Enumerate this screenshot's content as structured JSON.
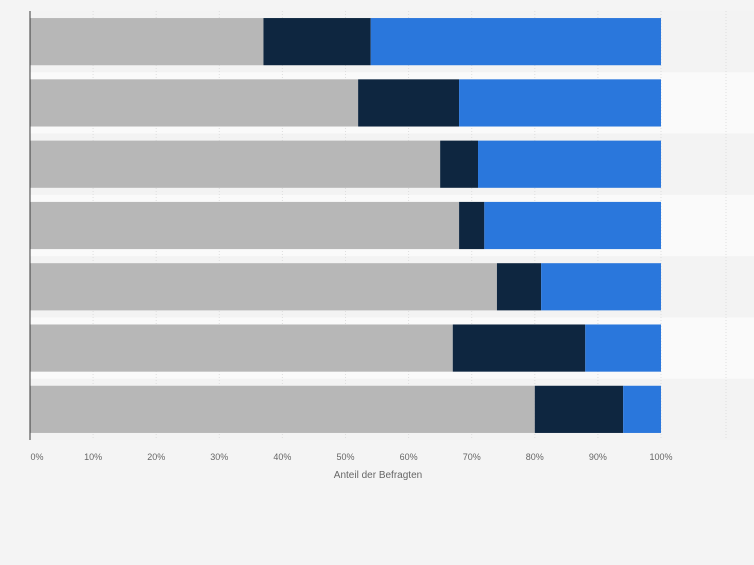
{
  "chart_data": {
    "type": "bar",
    "orientation": "horizontal",
    "stacked": true,
    "percent_stacked": true,
    "categories": [
      "",
      "",
      "",
      "",
      "",
      "",
      ""
    ],
    "series": [
      {
        "values": [
          37,
          52,
          65,
          68,
          74,
          67,
          80
        ],
        "color": "#b7b7b7"
      },
      {
        "values": [
          17,
          16,
          6,
          4,
          7,
          21,
          14
        ],
        "color": "#0e2640"
      },
      {
        "values": [
          46,
          32,
          29,
          28,
          19,
          12,
          6
        ],
        "color": "#2a77dc"
      }
    ],
    "xlim": [
      0,
      100
    ],
    "x_ticks": [
      "0%",
      "10%",
      "20%",
      "30%",
      "40%",
      "50%",
      "60%",
      "70%",
      "80%",
      "90%",
      "100%"
    ],
    "xlabel": "Anteil der Befragten",
    "ylabel": "",
    "title": "",
    "grid": true,
    "legend": "none"
  }
}
